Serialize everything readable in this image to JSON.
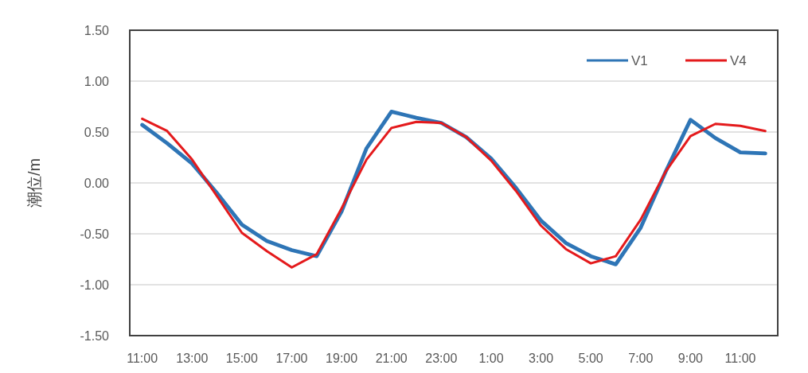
{
  "chart_data": {
    "type": "line",
    "ylabel": "潮位/m",
    "categories": [
      "11:00",
      null,
      "13:00",
      null,
      "15:00",
      null,
      "17:00",
      null,
      "19:00",
      null,
      "21:00",
      null,
      "23:00",
      null,
      "1:00",
      null,
      "3:00",
      null,
      "5:00",
      null,
      "7:00",
      null,
      "9:00",
      null,
      "11:00",
      null
    ],
    "series": [
      {
        "name": "V1",
        "color": "#2e75b6",
        "values": [
          0.57,
          0.39,
          0.19,
          -0.1,
          -0.41,
          -0.57,
          -0.66,
          -0.72,
          -0.28,
          0.34,
          0.7,
          0.64,
          0.59,
          0.45,
          0.24,
          -0.05,
          -0.37,
          -0.59,
          -0.72,
          -0.8,
          -0.44,
          0.11,
          0.62,
          0.44,
          0.3,
          0.29
        ]
      },
      {
        "name": "V4",
        "color": "#e41a1c",
        "values": [
          0.63,
          0.51,
          0.23,
          -0.13,
          -0.49,
          -0.67,
          -0.83,
          -0.7,
          -0.25,
          0.23,
          0.54,
          0.6,
          0.59,
          0.45,
          0.22,
          -0.08,
          -0.42,
          -0.65,
          -0.79,
          -0.72,
          -0.36,
          0.11,
          0.46,
          0.58,
          0.56,
          0.51
        ]
      }
    ],
    "ylim": [
      -1.5,
      1.5
    ],
    "yticks": [
      {
        "value": -1.5,
        "label": "-1.50"
      },
      {
        "value": -1.0,
        "label": "-1.00"
      },
      {
        "value": -0.5,
        "label": "-0.50"
      },
      {
        "value": 0,
        "label": "0.00"
      },
      {
        "value": 0.5,
        "label": "0.50"
      },
      {
        "value": 1.0,
        "label": "1.00"
      },
      {
        "value": 1.5,
        "label": "1.50"
      }
    ],
    "grid": "y",
    "legend": "top right",
    "marker": "none",
    "line_style": "solid"
  }
}
